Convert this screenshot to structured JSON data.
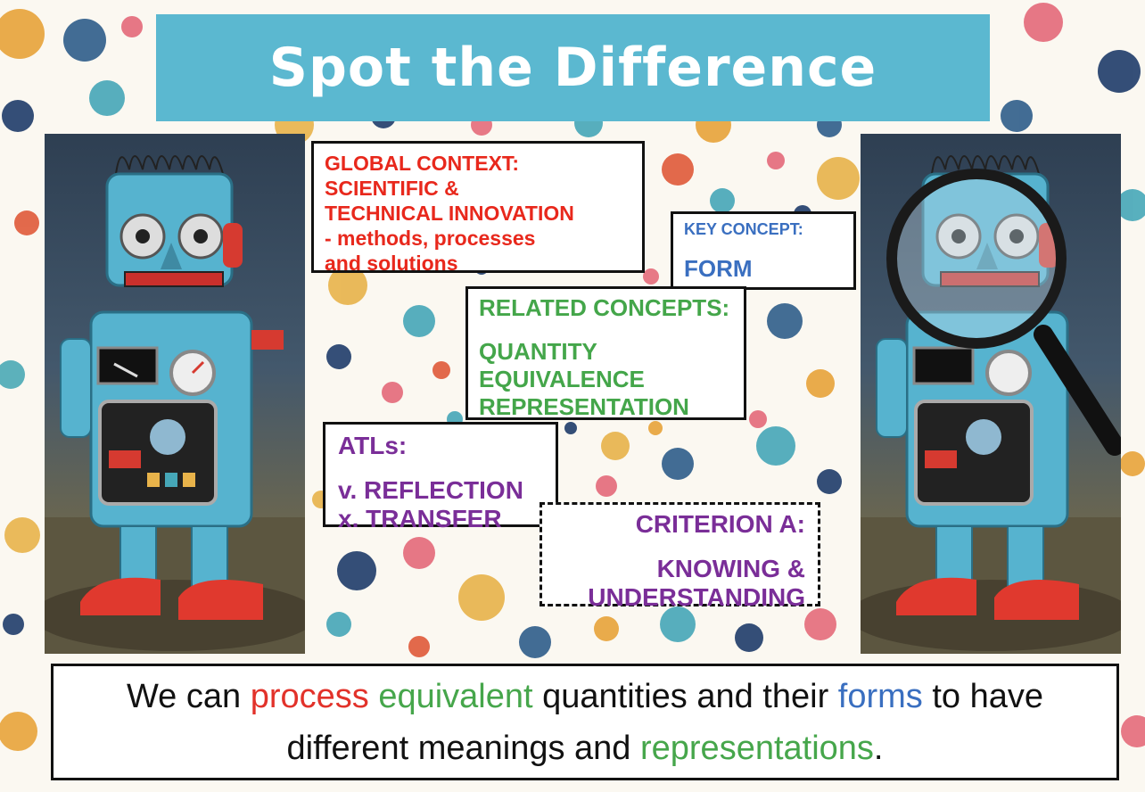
{
  "title": "Spot the Difference",
  "colors": {
    "banner": "#5bb8d0",
    "global_context": "#e8281c",
    "key_concept": "#3a6fc0",
    "related_concepts": "#44a64a",
    "atls": "#7a2e98",
    "criterion": "#7a2e98"
  },
  "global_context": {
    "label": "GLOBAL CONTEXT:",
    "lines": [
      "SCIENTIFIC &",
      "TECHNICAL INNOVATION",
      "- methods, processes",
      "and solutions"
    ]
  },
  "key_concept": {
    "label": "KEY CONCEPT:",
    "value": "FORM"
  },
  "related_concepts": {
    "label": "RELATED CONCEPTS:",
    "values": [
      "QUANTITY",
      "EQUIVALENCE",
      "REPRESENTATION"
    ]
  },
  "atls": {
    "label": "ATLs:",
    "values": [
      "v. REFLECTION",
      "x. TRANSFER"
    ]
  },
  "criterion": {
    "label": "CRITERION A:",
    "values": [
      "KNOWING &",
      "UNDERSTANDING"
    ]
  },
  "statement": {
    "w1": "We can",
    "w2": "process",
    "w3": "equivalent",
    "w4": "quantities and their",
    "w5": "forms",
    "w6": "to have different meanings and",
    "w7": "representations",
    "w8": "."
  },
  "images": {
    "left": "robot-image",
    "right": "robot-with-magnifying-glass-image"
  }
}
